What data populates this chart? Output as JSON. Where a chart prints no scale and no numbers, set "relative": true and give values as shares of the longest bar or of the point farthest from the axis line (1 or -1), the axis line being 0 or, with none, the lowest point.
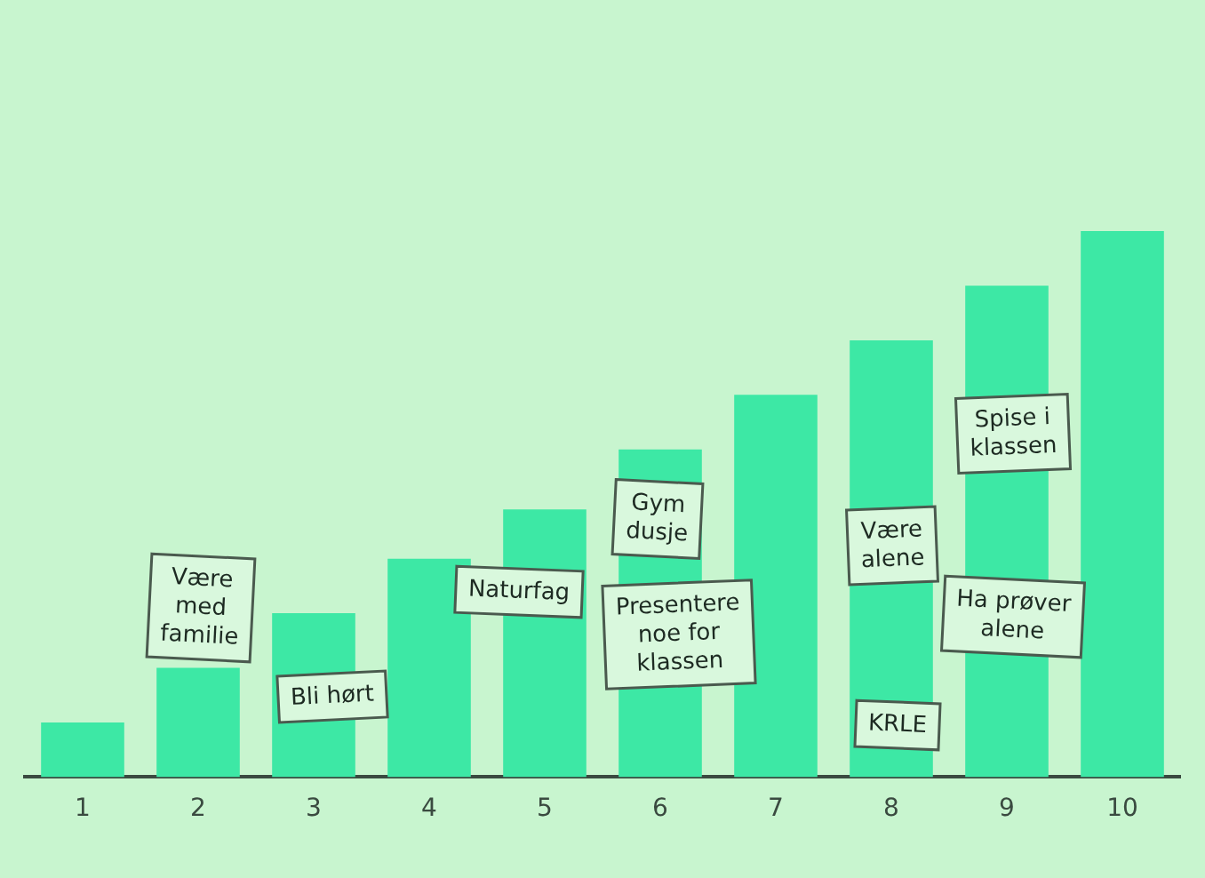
{
  "chart_data": {
    "type": "bar",
    "relative": true,
    "categories": [
      "1",
      "2",
      "3",
      "4",
      "5",
      "6",
      "7",
      "8",
      "9",
      "10"
    ],
    "values": [
      0.1,
      0.2,
      0.3,
      0.4,
      0.49,
      0.6,
      0.7,
      0.8,
      0.9,
      1.0
    ],
    "color": "#3de8a5",
    "grid": false,
    "legend": false,
    "annotations": [
      "Være med familie",
      "Bli hørt",
      "Naturfag",
      "Presentere noe for klassen",
      "Gym dusje",
      "Være alene",
      "KRLE",
      "Spise i klassen",
      "Ha prøver alene"
    ]
  }
}
